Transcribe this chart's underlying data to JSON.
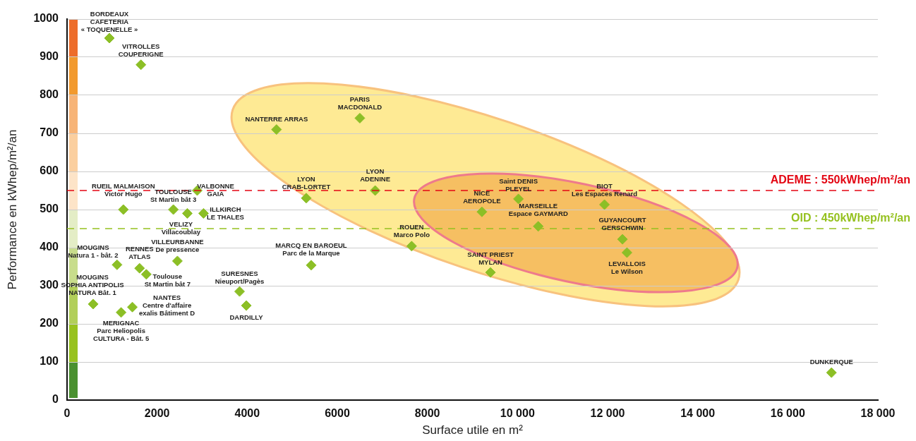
{
  "chart_data": {
    "type": "scatter",
    "xlabel": "Surface utile en m²",
    "ylabel": "Performance en kWhep/m²/an",
    "xlim": [
      0,
      18000
    ],
    "xticks": [
      0,
      2000,
      4000,
      6000,
      8000,
      {
        "value": 10000,
        "label": "10 000"
      },
      {
        "value": 12000,
        "label": "12 000"
      },
      {
        "value": 14000,
        "label": "14 000"
      },
      {
        "value": 16000,
        "label": "16 000"
      },
      {
        "value": 18000,
        "label": "18 000"
      }
    ],
    "ylim": [
      0,
      1000
    ],
    "yticks": [
      0,
      100,
      200,
      300,
      400,
      500,
      600,
      700,
      800,
      900,
      1000
    ],
    "grid": "y",
    "legend": false,
    "marker": "diamond",
    "series": [
      {
        "color": "#8cbf26",
        "x": [
          940,
          1640,
          4650,
          6500,
          5310,
          6840,
          2890,
          2360,
          1250,
          2670,
          3030,
          2450,
          1110,
          1610,
          1760,
          3830,
          3980,
          580,
          1450,
          1200,
          5420,
          7650,
          9210,
          10020,
          10460,
          9400,
          11930,
          12330,
          12430,
          16970
        ],
        "values": [
          950,
          880,
          710,
          740,
          530,
          550,
          550,
          500,
          500,
          490,
          490,
          365,
          355,
          346,
          330,
          285,
          248,
          252,
          244,
          230,
          354,
          404,
          494,
          528,
          456,
          335,
          513,
          422,
          387,
          72
        ]
      }
    ],
    "ref_lines": [
      {
        "axis": "y",
        "value": 550,
        "label": "ADEME : 550kWhep/m²/an",
        "color": "#e30613",
        "line_style": "dashed"
      },
      {
        "axis": "y",
        "value": 450,
        "label": "OID : 450kWhep/m²/an",
        "color": "#95c11f",
        "line_style": "dashed"
      }
    ],
    "annotations": [
      {
        "text": "BORDEAUX\nCAFETERIA\n« TOQUENELLE »",
        "x": 940,
        "y": 950
      },
      {
        "text": "VITROLLES\nCOUPERIGNE",
        "x": 1640,
        "y": 880
      },
      {
        "text": "NANTERRE ARRAS",
        "x": 4650,
        "y": 710
      },
      {
        "text": "PARIS\nMACDONALD",
        "x": 6500,
        "y": 740
      },
      {
        "text": "LYON\nCRAB-LORTET",
        "x": 5310,
        "y": 530
      },
      {
        "text": "LYON\nADENINE",
        "x": 6840,
        "y": 550
      },
      {
        "text": "VALBONNE\nGAIA",
        "x": 2890,
        "y": 550
      },
      {
        "text": "TOULOUSE\nSt Martin bât 3",
        "x": 2360,
        "y": 500
      },
      {
        "text": "RUEIL MALMAISON\nVictor Hugo",
        "x": 1250,
        "y": 500
      },
      {
        "text": "VELIZY\nVillacoublay",
        "x": 2670,
        "y": 490
      },
      {
        "text": "ILLKIRCH\nLE THALES",
        "x": 3030,
        "y": 490
      },
      {
        "text": "VILLEURBANNE\nDe pressence",
        "x": 2450,
        "y": 365
      },
      {
        "text": "MOUGINS\nNatura 1 - bât. 2",
        "x": 1110,
        "y": 355
      },
      {
        "text": "RENNES\nATLAS",
        "x": 1610,
        "y": 346
      },
      {
        "text": "Toulouse\nSt Martin bât 7",
        "x": 1760,
        "y": 330
      },
      {
        "text": "SURESNES\nNieuport/Pagès",
        "x": 3830,
        "y": 285
      },
      {
        "text": "DARDILLY",
        "x": 3980,
        "y": 248
      },
      {
        "text": "MOUGINS\nSOPHIA ANTIPOLIS\nNATURA Bât. 1",
        "x": 580,
        "y": 252
      },
      {
        "text": "NANTES\nCentre d'affaire\nexalis Bâtiment D",
        "x": 1450,
        "y": 244
      },
      {
        "text": "MERIGNAC\nParc Heliopolis\nCULTURA - Bât. 5",
        "x": 1200,
        "y": 230
      },
      {
        "text": "MARCQ EN BAROEUL\nParc de la Marque",
        "x": 5420,
        "y": 354
      },
      {
        "text": "ROUEN\nMarco Polo",
        "x": 7650,
        "y": 404
      },
      {
        "text": "NICE\nAEROPOLE",
        "x": 9210,
        "y": 494
      },
      {
        "text": "Saint DENIS\nPLEYEL",
        "x": 10020,
        "y": 528
      },
      {
        "text": "MARSEILLE\nEspace GAYMARD",
        "x": 10460,
        "y": 456
      },
      {
        "text": "SAINT PRIEST\nMYLAN",
        "x": 9400,
        "y": 335
      },
      {
        "text": "BIOT\nLes Espaces Renard",
        "x": 11930,
        "y": 513
      },
      {
        "text": "GUYANCOURT\nGERSCHWIN",
        "x": 12330,
        "y": 422
      },
      {
        "text": "LEVALLOIS\nLe Wilson",
        "x": 12430,
        "y": 387
      },
      {
        "text": "DUNKERQUE",
        "x": 16970,
        "y": 72
      }
    ]
  }
}
